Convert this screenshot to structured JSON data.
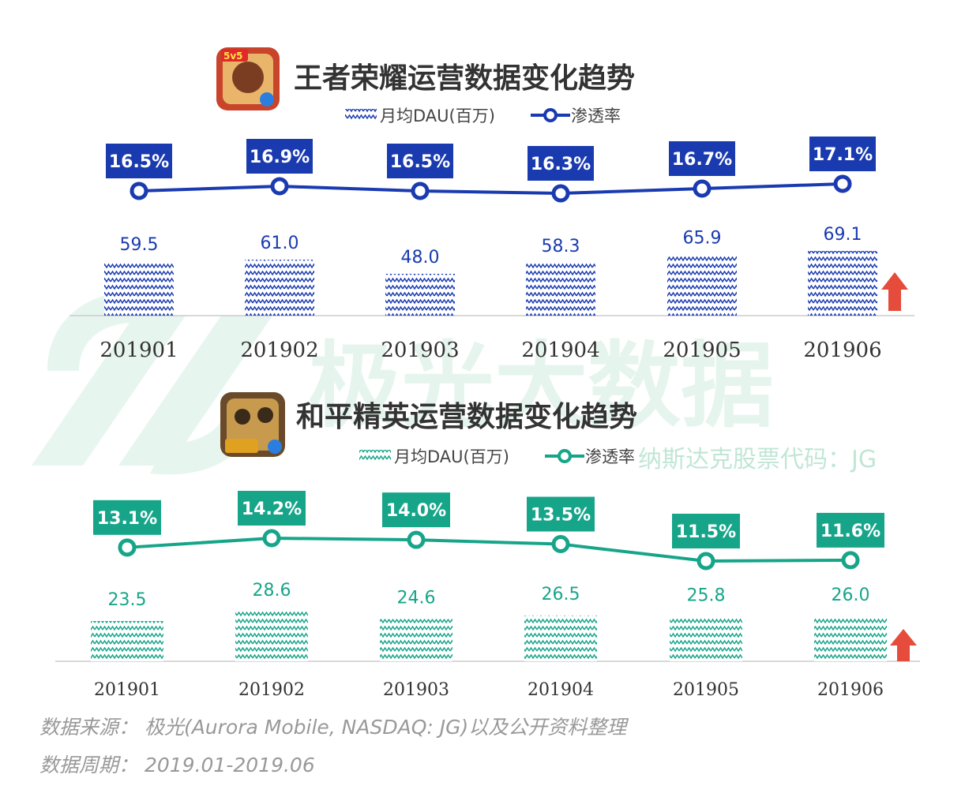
{
  "watermark": {
    "brand": "极光大数据",
    "ticker": "纳斯达克股票代码：JG"
  },
  "colors": {
    "blue": "#1a3bb0",
    "green": "#17a58a",
    "arrow": "#e64c3c"
  },
  "chart_data": [
    {
      "type": "bar",
      "title": "王者荣耀运营数据变化趋势",
      "icon": "honor-of-kings-app-icon",
      "color": "#1a3bb0",
      "categories": [
        "201901",
        "201902",
        "201903",
        "201904",
        "201905",
        "201906"
      ],
      "series": [
        {
          "name": "月均DAU(百万)",
          "type": "bar",
          "values": [
            59.5,
            61.0,
            48.0,
            58.3,
            65.9,
            69.1
          ],
          "labels": [
            "59.5",
            "61.0",
            "48.0",
            "58.3",
            "65.9",
            "69.1"
          ]
        },
        {
          "name": "渗透率",
          "type": "line",
          "values": [
            16.5,
            16.9,
            16.5,
            16.3,
            16.7,
            17.1
          ],
          "labels": [
            "16.5%",
            "16.9%",
            "16.5%",
            "16.3%",
            "16.7%",
            "17.1%"
          ]
        }
      ],
      "trend": "up"
    },
    {
      "type": "bar",
      "title": "和平精英运营数据变化趋势",
      "icon": "game-for-peace-app-icon",
      "color": "#17a58a",
      "categories": [
        "201901",
        "201902",
        "201903",
        "201904",
        "201905",
        "201906"
      ],
      "series": [
        {
          "name": "月均DAU(百万)",
          "type": "bar",
          "values": [
            23.5,
            28.6,
            24.6,
            26.5,
            25.8,
            26.0
          ],
          "labels": [
            "23.5",
            "28.6",
            "24.6",
            "26.5",
            "25.8",
            "26.0"
          ]
        },
        {
          "name": "渗透率",
          "type": "line",
          "values": [
            13.1,
            14.2,
            14.0,
            13.5,
            11.5,
            11.6
          ],
          "labels": [
            "13.1%",
            "14.2%",
            "14.0%",
            "13.5%",
            "11.5%",
            "11.6%"
          ]
        }
      ],
      "trend": "up"
    }
  ],
  "footer": {
    "source": "数据来源：  极光(Aurora Mobile, NASDAQ: JG)以及公开资料整理",
    "period": "数据周期：  2019.01-2019.06"
  }
}
